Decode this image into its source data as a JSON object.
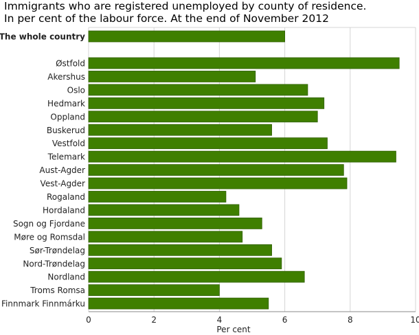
{
  "chart_data": {
    "type": "bar",
    "orientation": "horizontal",
    "title_line1": "Immigrants who are registered unemployed by county of residence.",
    "title_line2": "In per cent of the labour force. At the end of November 2012",
    "xlabel": "Per cent",
    "ylabel": "",
    "xlim": [
      0,
      10
    ],
    "ticks": [
      0,
      2,
      4,
      6,
      8,
      10
    ],
    "grid": true,
    "bar_color": "#3f7f00",
    "bar_edge_color": "#2f5f00",
    "categories": [
      "The whole country",
      "Østfold",
      "Akershus",
      "Oslo",
      "Hedmark",
      "Oppland",
      "Buskerud",
      "Vestfold",
      "Telemark",
      "Aust-Agder",
      "Vest-Agder",
      "Rogaland",
      "Hordaland",
      "Sogn og Fjordane",
      "Møre og Romsdal",
      "Sør-Trøndelag",
      "Nord-Trøndelag",
      "Nordland",
      "Troms Romsa",
      "Finnmark Finnmárku"
    ],
    "values": [
      6.0,
      9.5,
      5.1,
      6.7,
      7.2,
      7.0,
      5.6,
      7.3,
      9.4,
      7.8,
      7.9,
      4.2,
      4.6,
      5.3,
      4.7,
      5.6,
      5.9,
      6.6,
      4.0,
      5.5
    ]
  }
}
